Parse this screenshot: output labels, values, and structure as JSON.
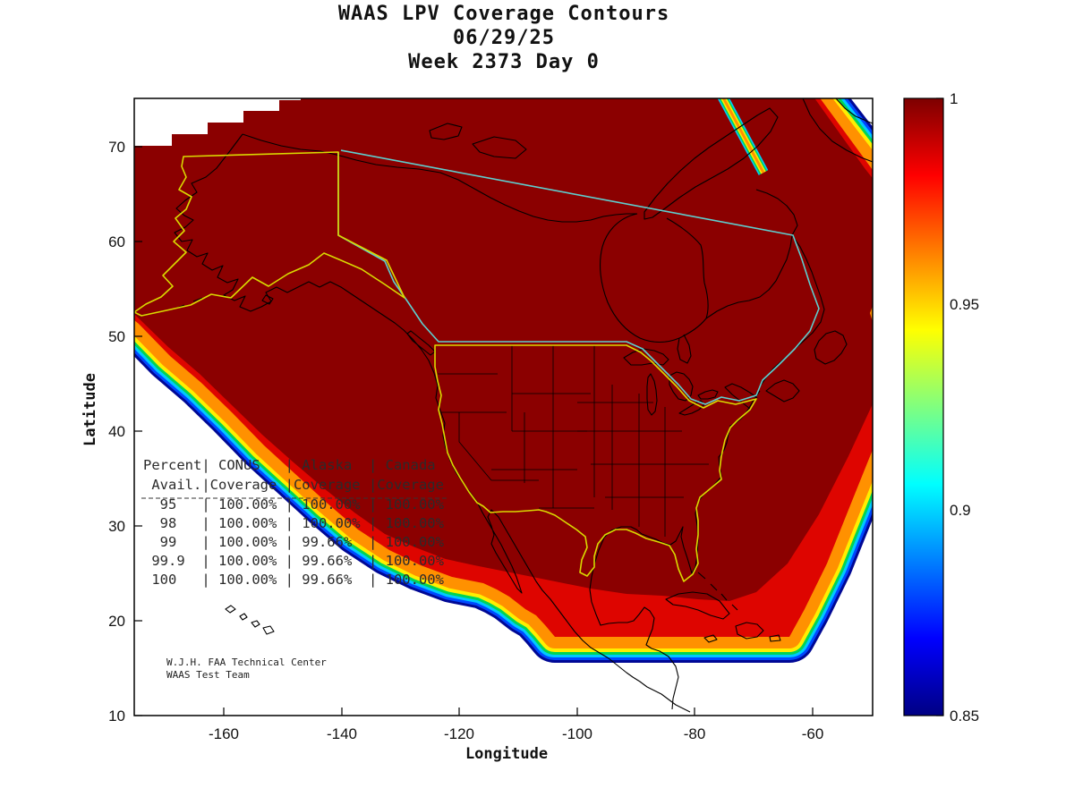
{
  "title": {
    "line1": "WAAS LPV Coverage Contours",
    "line2": "06/29/25",
    "line3": "Week 2373 Day 0"
  },
  "axes": {
    "x_label": "Longitude",
    "y_label": "Latitude",
    "x_ticks": [
      "-160",
      "-140",
      "-120",
      "-100",
      "-80",
      "-60"
    ],
    "y_ticks": [
      "10",
      "20",
      "30",
      "40",
      "50",
      "60",
      "70"
    ],
    "colorbar_ticks": [
      "1",
      "0.95",
      "0.9",
      "0.85"
    ]
  },
  "table": {
    "header1": "Percent| CONUS   | Alaska  | Canada",
    "header2": " Avail.|Coverage |Coverage |Coverage",
    "rows": [
      "  95   | 100.00% | 100.00% | 100.00%",
      "  98   | 100.00% | 100.00% | 100.00%",
      "  99   | 100.00% | 99.66%  | 100.00%",
      " 99.9  | 100.00% | 99.66%  | 100.00%",
      " 100   | 100.00% | 99.66%  | 100.00%"
    ]
  },
  "credit": {
    "line1": "W.J.H. FAA Technical Center",
    "line2": "WAAS Test Team"
  },
  "colors": {
    "background": "#ffffff",
    "coverage_high": "#8b0000",
    "coverage_mid": "#de0500",
    "fringe": [
      "#ff9100",
      "#ffee00",
      "#00d455",
      "#00c8ff",
      "#0048ff",
      "#000895"
    ],
    "jet_stops": [
      "#7d0000",
      "#ff0000",
      "#ffff00",
      "#00ffff",
      "#0000ff",
      "#000083"
    ],
    "conus_alaska_outline": "#d9d900",
    "canada_outline": "#5ecfcf",
    "coastline": "#000000"
  },
  "chart_data": {
    "type": "heatmap",
    "subtype": "filled-contour-coverage-map",
    "title": "WAAS LPV Coverage Contours",
    "date": "06/29/25",
    "gps_week": 2373,
    "gps_day": 0,
    "xlabel": "Longitude",
    "ylabel": "Latitude",
    "xlim": [
      -175,
      -50
    ],
    "ylim": [
      10,
      75
    ],
    "x_ticks": [
      -160,
      -140,
      -120,
      -100,
      -80,
      -60
    ],
    "y_ticks": [
      10,
      20,
      30,
      40,
      50,
      60,
      70
    ],
    "grid": false,
    "colorbar": {
      "min": 0.85,
      "max": 1.0,
      "ticks": [
        1,
        0.95,
        0.9,
        0.85
      ],
      "colormap": "jet",
      "position": "right"
    },
    "coverage_summary": "Coverage value 1.0 (dark red) over nearly all of CONUS, Alaska and Canada; contours taper from 1.0 down through 0.85 (blue) in narrow rainbow fringes along the southwest Pacific edge, the southern boundary near Mexico/Caribbean, the southeast Atlantic edge and a small northeast cutoff.",
    "availability_table": {
      "columns": [
        "Percent Avail.",
        "CONUS Coverage",
        "Alaska Coverage",
        "Canada Coverage"
      ],
      "rows": [
        [
          "95",
          "100.00%",
          "100.00%",
          "100.00%"
        ],
        [
          "98",
          "100.00%",
          "100.00%",
          "100.00%"
        ],
        [
          "99",
          "100.00%",
          "99.66%",
          "100.00%"
        ],
        [
          "99.9",
          "100.00%",
          "99.66%",
          "100.00%"
        ],
        [
          "100",
          "100.00%",
          "99.66%",
          "100.00%"
        ]
      ]
    },
    "regions": [
      {
        "name": "CONUS",
        "outline_color": "#d9d900"
      },
      {
        "name": "Alaska",
        "outline_color": "#d9d900"
      },
      {
        "name": "Canada",
        "outline_color": "#5ecfcf"
      }
    ]
  }
}
